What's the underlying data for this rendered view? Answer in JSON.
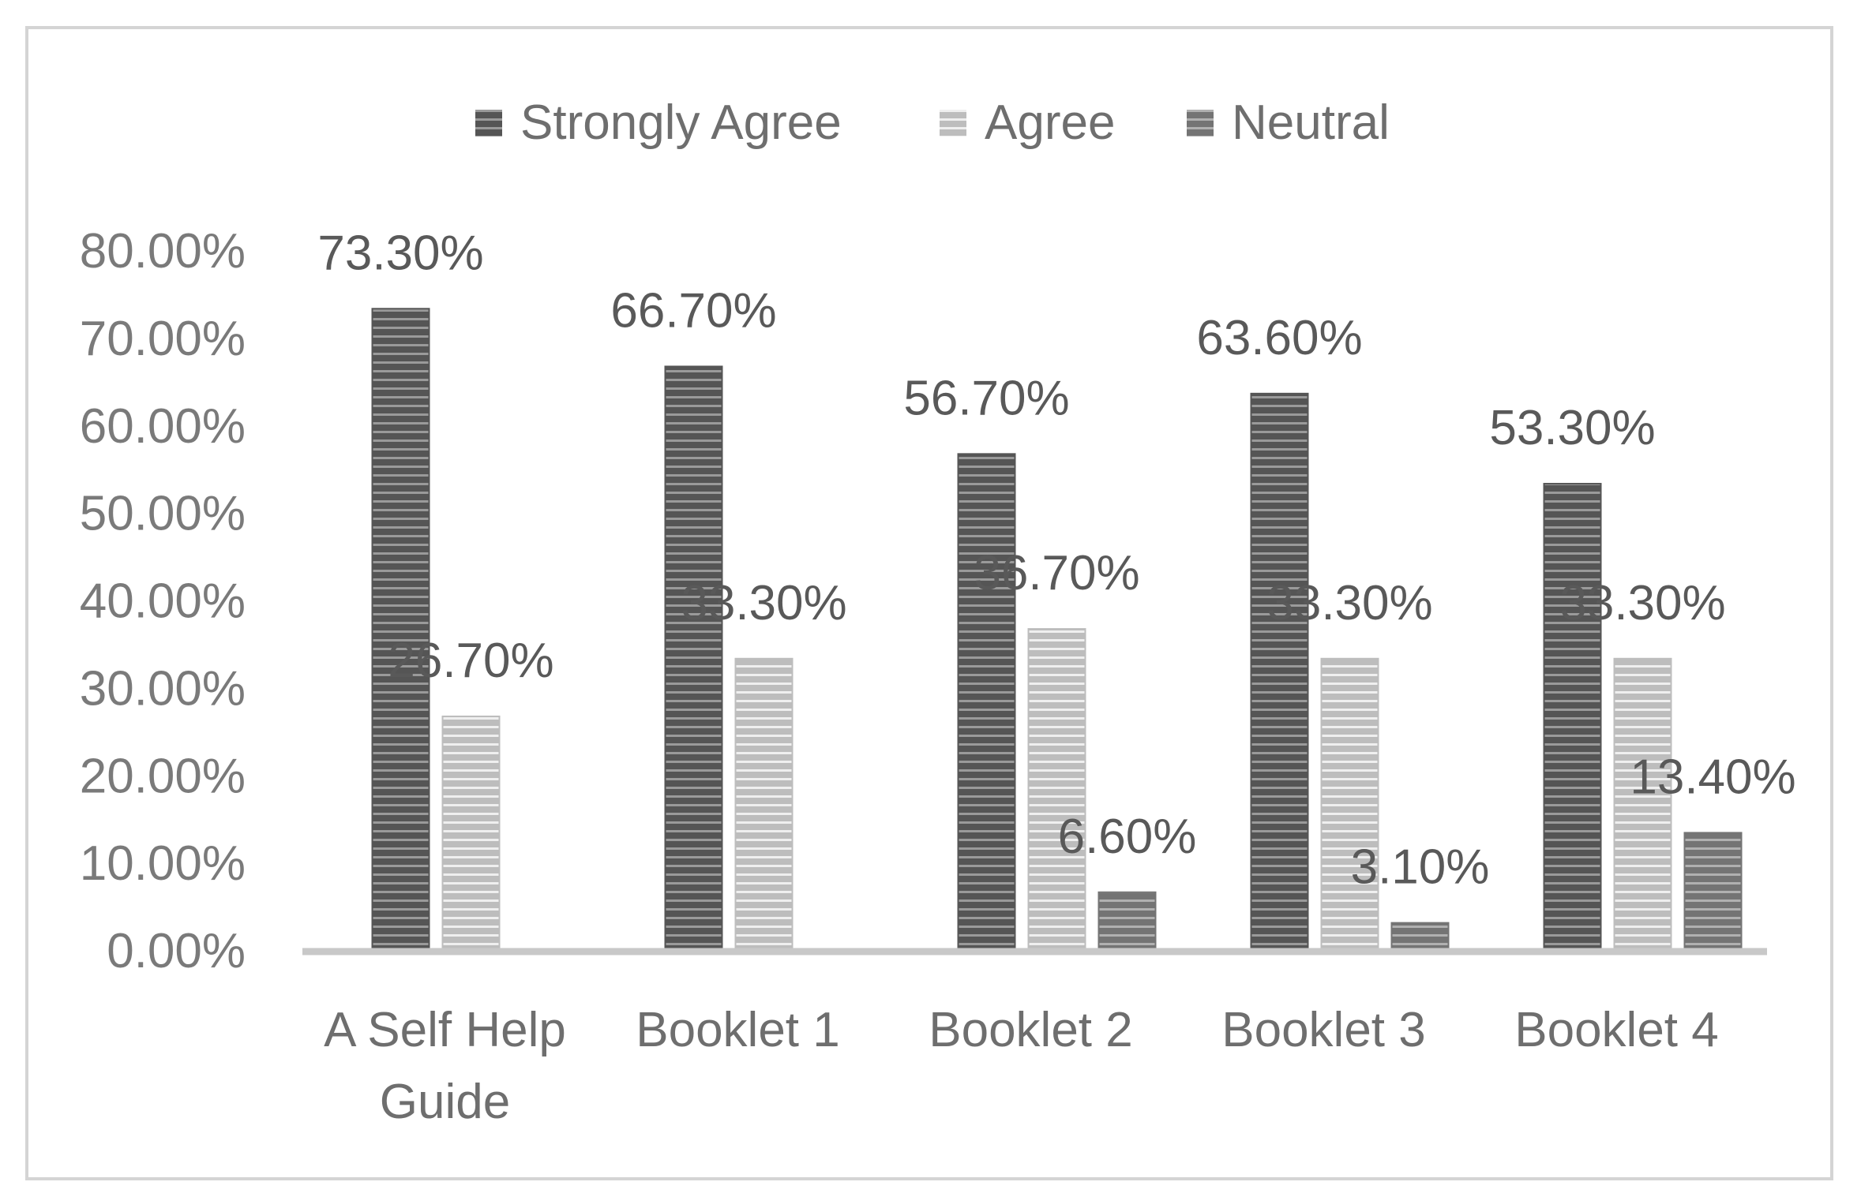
{
  "chart_data": {
    "type": "bar",
    "title": "",
    "xlabel": "",
    "ylabel": "",
    "ylim": [
      0,
      0.8
    ],
    "grid": false,
    "legend_position": "top",
    "categories": [
      [
        "A Self Help",
        "Guide"
      ],
      [
        "Booklet 1"
      ],
      [
        "Booklet 2"
      ],
      [
        "Booklet 3"
      ],
      [
        "Booklet 4"
      ]
    ],
    "yticks": [
      {
        "value": 0.0,
        "label": "0.00%"
      },
      {
        "value": 0.1,
        "label": "10.00%"
      },
      {
        "value": 0.2,
        "label": "20.00%"
      },
      {
        "value": 0.3,
        "label": "30.00%"
      },
      {
        "value": 0.4,
        "label": "40.00%"
      },
      {
        "value": 0.5,
        "label": "50.00%"
      },
      {
        "value": 0.6,
        "label": "60.00%"
      },
      {
        "value": 0.7,
        "label": "70.00%"
      },
      {
        "value": 0.8,
        "label": "80.00%"
      }
    ],
    "series": [
      {
        "name": "Strongly Agree",
        "color": "#555555",
        "stripe": "#9a9a9a",
        "values": [
          0.733,
          0.667,
          0.567,
          0.636,
          0.533
        ],
        "labels": [
          "73.30%",
          "66.70%",
          "56.70%",
          "63.60%",
          "53.30%"
        ]
      },
      {
        "name": "Agree",
        "color": "#bdbdbd",
        "stripe": "#efefef",
        "values": [
          0.267,
          0.333,
          0.367,
          0.333,
          0.333
        ],
        "labels": [
          "26.70%",
          "33.30%",
          "36.70%",
          "33.30%",
          "33.30%"
        ]
      },
      {
        "name": "Neutral",
        "color": "#747474",
        "stripe": "#b0b0b0",
        "values": [
          null,
          null,
          0.066,
          0.031,
          0.134
        ],
        "labels": [
          null,
          null,
          "6.60%",
          "3.10%",
          "13.40%"
        ]
      }
    ]
  }
}
